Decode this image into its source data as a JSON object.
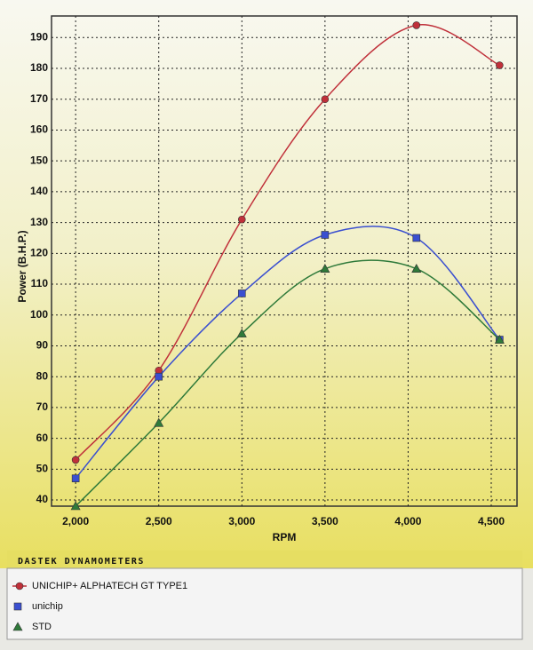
{
  "chart_data": {
    "type": "line",
    "x_label": "RPM",
    "y_label": "Power (B.H.P.)",
    "footer": "DASTEK DYNAMOMETERS",
    "x": [
      2000,
      2500,
      3000,
      3500,
      4050,
      4550
    ],
    "series": [
      {
        "name": "UNICHIP+ ALPHATECH GT TYPE1",
        "color": "#c0303a",
        "marker": "circle",
        "values": [
          53,
          82,
          131,
          170,
          194,
          181
        ]
      },
      {
        "name": "unichip",
        "color": "#3a4fd0",
        "marker": "square",
        "values": [
          47,
          80,
          107,
          126,
          125,
          92
        ]
      },
      {
        "name": "STD",
        "color": "#2f7a3a",
        "marker": "triangle",
        "values": [
          38,
          65,
          94,
          115,
          115,
          92
        ]
      }
    ],
    "xlim": [
      1855,
      4655
    ],
    "ylim": [
      38,
      197
    ],
    "xticks": [
      {
        "value": 2000,
        "label": "2,000"
      },
      {
        "value": 2500,
        "label": "2,500"
      },
      {
        "value": 3000,
        "label": "3,000"
      },
      {
        "value": 3500,
        "label": "3,500"
      },
      {
        "value": 4000,
        "label": "4,000"
      },
      {
        "value": 4500,
        "label": "4,500"
      }
    ],
    "yticks": [
      40,
      50,
      60,
      70,
      80,
      90,
      100,
      110,
      120,
      130,
      140,
      150,
      160,
      170,
      180,
      190
    ],
    "grid": true
  }
}
